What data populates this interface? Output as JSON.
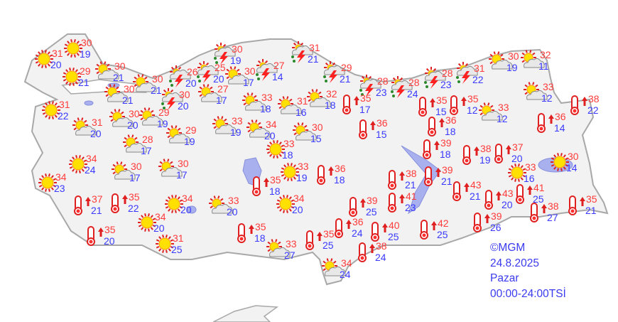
{
  "legend": {
    "copyright": "©MGM",
    "date": "24.8.2025",
    "day": "Pazar",
    "period": "00:00-24:00TSİ"
  },
  "colors": {
    "high": "#ff3b3b",
    "low": "#3a3aff",
    "land": "#f2f2f2",
    "border": "#a8a8a8",
    "lake": "#a8b0ee"
  },
  "icon_types": {
    "sun": "sun-icon",
    "pcloud": "partly-cloudy-icon",
    "storm": "thunderstorm-icon",
    "hot": "hot-thermometer-icon"
  },
  "stations": [
    {
      "type": "sun",
      "high": "31",
      "low": "20"
    },
    {
      "type": "sun",
      "high": "30",
      "low": "19"
    },
    {
      "type": "sun",
      "high": "29",
      "low": "21"
    },
    {
      "type": "pcloud",
      "high": "30",
      "low": "21"
    },
    {
      "type": "pcloud",
      "high": "30",
      "low": "21"
    },
    {
      "type": "sun",
      "high": "31",
      "low": "22"
    },
    {
      "type": "pcloud",
      "high": "30",
      "low": "21"
    },
    {
      "type": "storm",
      "high": "26",
      "low": "20"
    },
    {
      "type": "storm",
      "high": "25",
      "low": "20"
    },
    {
      "type": "storm",
      "high": "30",
      "low": "20"
    },
    {
      "type": "storm",
      "high": "30",
      "low": "19"
    },
    {
      "type": "pcloud",
      "high": "27",
      "low": "17"
    },
    {
      "type": "pcloud",
      "high": "30",
      "low": "17"
    },
    {
      "type": "storm",
      "high": "27",
      "low": "14"
    },
    {
      "type": "storm",
      "high": "31",
      "low": "21"
    },
    {
      "type": "storm",
      "high": "29",
      "low": "21"
    },
    {
      "type": "storm",
      "high": "28",
      "low": "23"
    },
    {
      "type": "storm",
      "high": "28",
      "low": "24"
    },
    {
      "type": "storm",
      "high": "28",
      "low": "23"
    },
    {
      "type": "storm",
      "high": "31",
      "low": "22"
    },
    {
      "type": "pcloud",
      "high": "30",
      "low": "19"
    },
    {
      "type": "pcloud",
      "high": "32",
      "low": "11"
    },
    {
      "type": "pcloud",
      "high": "33",
      "low": "12"
    },
    {
      "type": "hot",
      "high": "38",
      "low": "22"
    },
    {
      "type": "pcloud",
      "high": "33",
      "low": "12"
    },
    {
      "type": "hot",
      "high": "36",
      "low": "14"
    },
    {
      "type": "hot",
      "high": "35",
      "low": "15"
    },
    {
      "type": "hot",
      "high": "35",
      "low": "12"
    },
    {
      "type": "hot",
      "high": "36",
      "low": "18"
    },
    {
      "type": "hot",
      "high": "39",
      "low": "18"
    },
    {
      "type": "hot",
      "high": "38",
      "low": "19"
    },
    {
      "type": "hot",
      "high": "37",
      "low": "20"
    },
    {
      "type": "sun",
      "high": "30",
      "low": "14"
    },
    {
      "type": "sun",
      "high": "33",
      "low": "16"
    },
    {
      "type": "hot",
      "high": "35",
      "low": "17"
    },
    {
      "type": "pcloud",
      "high": "32",
      "low": "18"
    },
    {
      "type": "pcloud",
      "high": "31",
      "low": "16"
    },
    {
      "type": "pcloud",
      "high": "33",
      "low": "18"
    },
    {
      "type": "pcloud",
      "high": "33",
      "low": "19"
    },
    {
      "type": "pcloud",
      "high": "34",
      "low": "20"
    },
    {
      "type": "pcloud",
      "high": "30",
      "low": "15"
    },
    {
      "type": "hot",
      "high": "36",
      "low": "15"
    },
    {
      "type": "sun",
      "high": "33",
      "low": "18"
    },
    {
      "type": "sun",
      "high": "33",
      "low": "19"
    },
    {
      "type": "hot",
      "high": "36",
      "low": "18"
    },
    {
      "type": "hot",
      "high": "35",
      "low": "18"
    },
    {
      "type": "sun",
      "high": "34",
      "low": "20"
    },
    {
      "type": "pcloud",
      "high": "33",
      "low": "20"
    },
    {
      "type": "sun",
      "high": "34",
      "low": "20"
    },
    {
      "type": "sun",
      "high": "34",
      "low": "20"
    },
    {
      "type": "sun",
      "high": "31",
      "low": "25"
    },
    {
      "type": "hot",
      "high": "35",
      "low": "18"
    },
    {
      "type": "pcloud",
      "high": "33",
      "low": "27"
    },
    {
      "type": "hot",
      "high": "35",
      "low": "25"
    },
    {
      "type": "hot",
      "high": "36",
      "low": "24"
    },
    {
      "type": "hot",
      "high": "39",
      "low": "25"
    },
    {
      "type": "hot",
      "high": "38",
      "low": "24"
    },
    {
      "type": "pcloud",
      "high": "34",
      "low": "24"
    },
    {
      "type": "hot",
      "high": "40",
      "low": "25"
    },
    {
      "type": "hot",
      "high": "41",
      "low": "23"
    },
    {
      "type": "hot",
      "high": "38",
      "low": "21"
    },
    {
      "type": "hot",
      "high": "39",
      "low": "21"
    },
    {
      "type": "hot",
      "high": "42",
      "low": "25"
    },
    {
      "type": "hot",
      "high": "43",
      "low": "21"
    },
    {
      "type": "hot",
      "high": "43",
      "low": "20"
    },
    {
      "type": "hot",
      "high": "39",
      "low": "26"
    },
    {
      "type": "hot",
      "high": "41",
      "low": "25"
    },
    {
      "type": "hot",
      "high": "38",
      "low": "27"
    },
    {
      "type": "hot",
      "high": "35",
      "low": "21"
    },
    {
      "type": "hot",
      "high": "37",
      "low": "21"
    },
    {
      "type": "hot",
      "high": "35",
      "low": "22"
    },
    {
      "type": "hot",
      "high": "35",
      "low": "20"
    },
    {
      "type": "sun",
      "high": "34",
      "low": "23"
    },
    {
      "type": "sun",
      "high": "34",
      "low": "24"
    },
    {
      "type": "pcloud",
      "high": "30",
      "low": "17"
    },
    {
      "type": "pcloud",
      "high": "30",
      "low": "17"
    },
    {
      "type": "pcloud",
      "high": "28",
      "low": "17"
    },
    {
      "type": "pcloud",
      "high": "29",
      "low": "19"
    },
    {
      "type": "pcloud",
      "high": "29",
      "low": "19"
    },
    {
      "type": "pcloud",
      "high": "31",
      "low": "20"
    },
    {
      "type": "pcloud",
      "high": "30",
      "low": "20"
    }
  ]
}
